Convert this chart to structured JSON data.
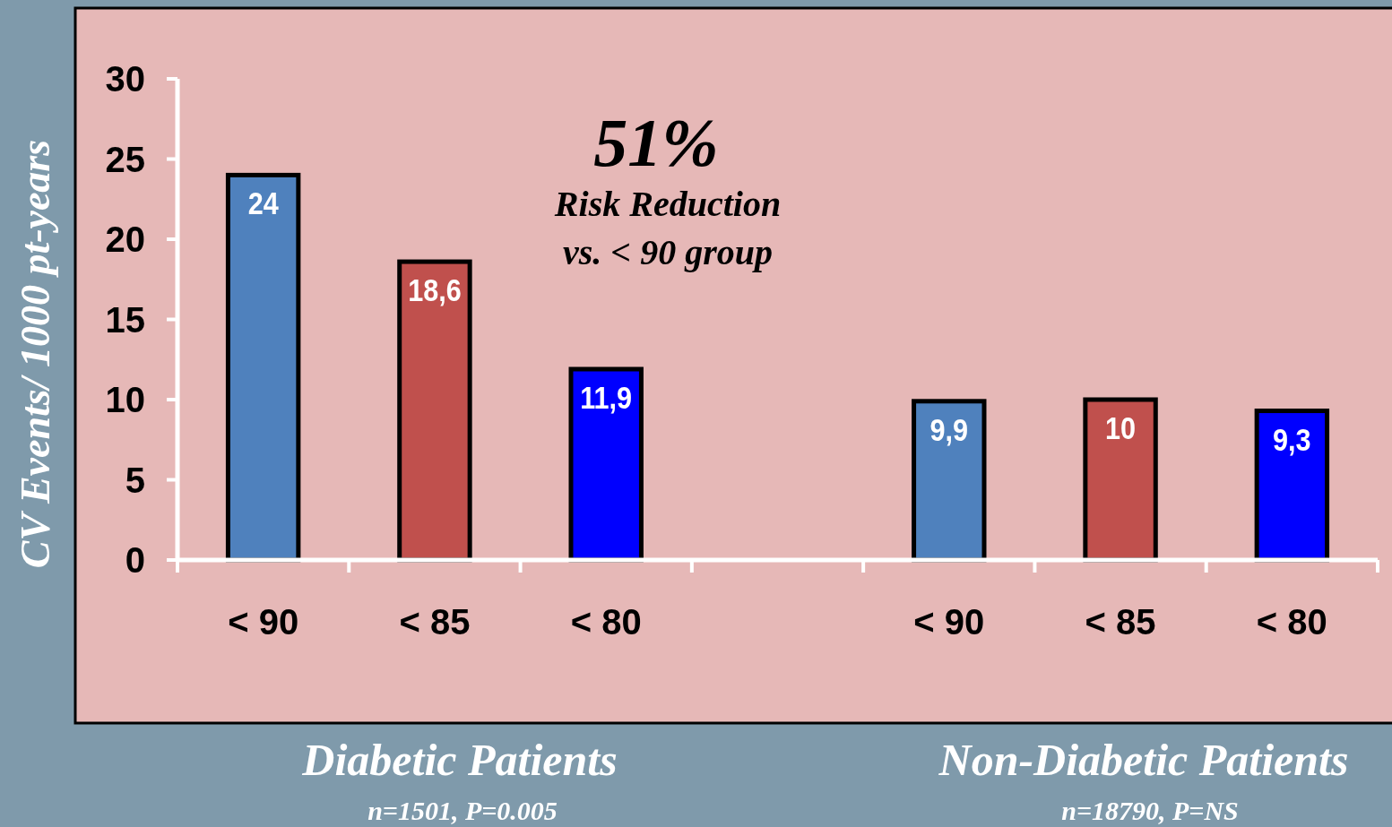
{
  "chart_data": {
    "type": "bar",
    "ylabel": "CV Events/ 1000 pt-years",
    "categories": [
      "< 90",
      "< 85",
      "< 80",
      null,
      "< 90",
      "< 85",
      "< 80"
    ],
    "values": [
      24,
      18.6,
      11.9,
      null,
      9.9,
      10,
      9.3
    ],
    "value_labels": [
      "24",
      "18,6",
      "11,9",
      null,
      "9,9",
      "10",
      "9,3"
    ],
    "colors": [
      "#4f81bd",
      "#c0504d",
      "#0000ff",
      null,
      "#4f81bd",
      "#c0504d",
      "#0000ff"
    ],
    "ylim": [
      0,
      30
    ],
    "yticks": [
      0,
      5,
      10,
      15,
      20,
      25,
      30
    ],
    "grid": false,
    "annotations": [
      "51%",
      "Risk Reduction",
      "vs. < 90 group",
      "Diabetic Patients",
      "n=1501, P=0.005",
      "Non-Diabetic Patients",
      "n=18790,  P=NS"
    ]
  }
}
